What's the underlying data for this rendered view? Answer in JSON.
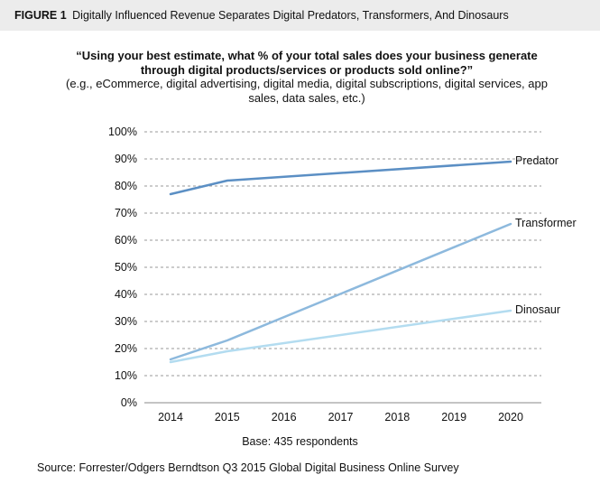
{
  "figure": {
    "label": "FIGURE 1",
    "title": "Digitally Influenced Revenue Separates Digital Predators, Transformers, And Dinosaurs"
  },
  "question": {
    "main": "“Using your best estimate, what % of your total sales does your business generate through digital products/services or products sold online?”",
    "examples": "(e.g., eCommerce, digital advertising, digital media, digital subscriptions, digital services, app sales, data sales, etc.)"
  },
  "chart_data": {
    "type": "line",
    "x": [
      2014,
      2015,
      2016,
      2017,
      2018,
      2019,
      2020
    ],
    "x_tick_labels": [
      "2014",
      "2015",
      "2016",
      "2017",
      "2018",
      "2019",
      "2020"
    ],
    "y_tick_values": [
      0,
      10,
      20,
      30,
      40,
      50,
      60,
      70,
      80,
      90,
      100
    ],
    "y_tick_labels": [
      "0%",
      "10%",
      "20%",
      "30%",
      "40%",
      "50%",
      "60%",
      "70%",
      "80%",
      "90%",
      "100%"
    ],
    "ylim": [
      0,
      100
    ],
    "grid": "dashed horizontal",
    "series_labels_position": "right end of each line",
    "series": [
      {
        "name": "Predator",
        "color": "#5b8fc4",
        "x": [
          2014,
          2015,
          2020
        ],
        "values": [
          77,
          82,
          89
        ]
      },
      {
        "name": "Transformer",
        "color": "#8db9dd",
        "x": [
          2014,
          2015,
          2020
        ],
        "values": [
          16,
          23,
          66
        ]
      },
      {
        "name": "Dinosaur",
        "color": "#b3dcf0",
        "x": [
          2014,
          2015,
          2020
        ],
        "values": [
          15,
          19,
          34
        ]
      }
    ]
  },
  "notes": {
    "base": "Base: 435 respondents",
    "source": "Source: Forrester/Odgers Berndtson Q3 2015 Global Digital Business Online Survey"
  }
}
